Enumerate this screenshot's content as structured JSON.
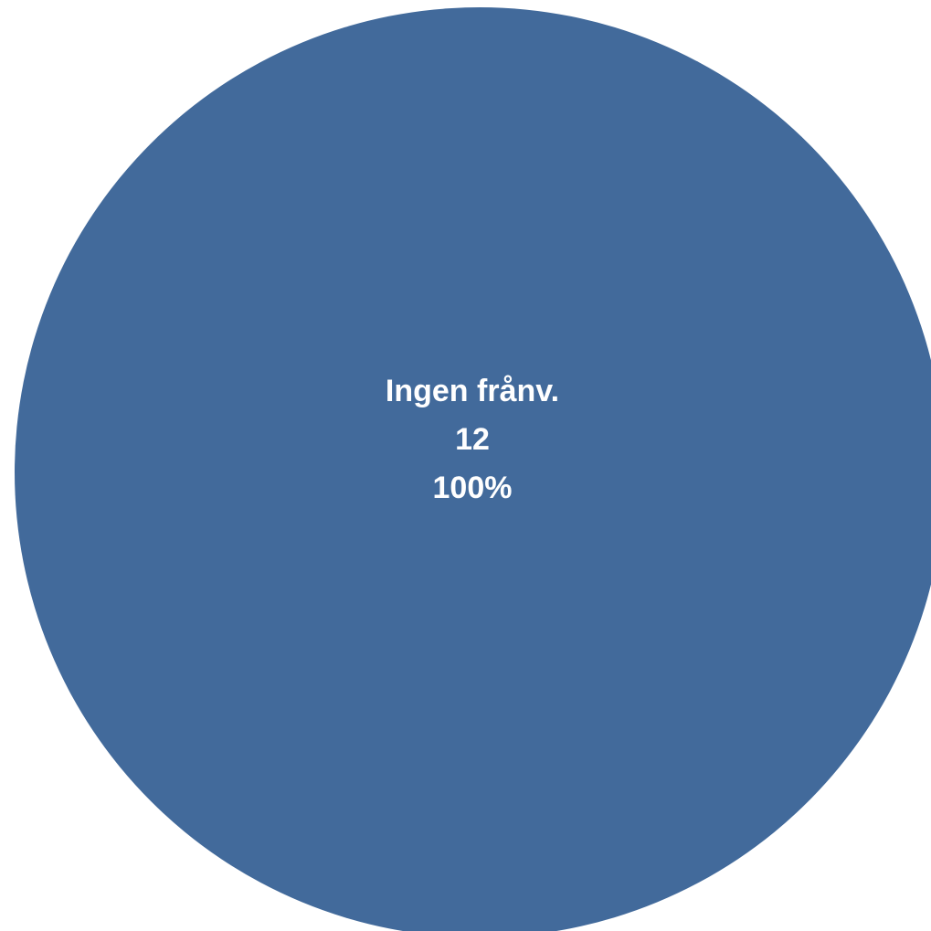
{
  "chart_data": {
    "type": "pie",
    "slices": [
      {
        "label": "Ingen frånv.",
        "value": 12,
        "percent_label": "100%",
        "color": "#426A9B"
      }
    ]
  }
}
